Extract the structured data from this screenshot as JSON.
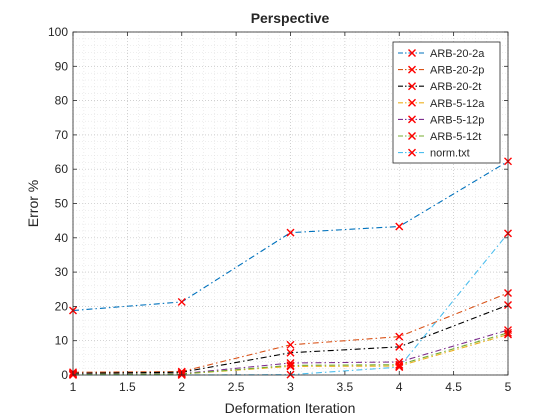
{
  "chart_data": {
    "type": "line",
    "title": "Perspective",
    "xlabel": "Deformation Iteration",
    "ylabel": "Error %",
    "xlim": [
      1,
      5
    ],
    "ylim": [
      0,
      100
    ],
    "xticks": [
      1,
      1.5,
      2,
      2.5,
      3,
      3.5,
      4,
      4.5,
      5
    ],
    "xtick_labels": [
      "1",
      "1.5",
      "2",
      "2.5",
      "3",
      "3.5",
      "4",
      "4.5",
      "5"
    ],
    "yticks": [
      0,
      10,
      20,
      30,
      40,
      50,
      60,
      70,
      80,
      90,
      100
    ],
    "ytick_labels": [
      "0",
      "10",
      "20",
      "30",
      "40",
      "50",
      "60",
      "70",
      "80",
      "90",
      "100"
    ],
    "grid": "major and minor, dotted",
    "legend_position": "top-right",
    "marker": "x",
    "marker_color": "#ff0000",
    "line_style": "dash-dot",
    "x": [
      1,
      2,
      3,
      4,
      5
    ],
    "series": [
      {
        "name": "ARB-20-2a",
        "color": "#0072BD",
        "values": [
          18.8,
          21.3,
          41.5,
          43.3,
          62.3
        ]
      },
      {
        "name": "ARB-20-2p",
        "color": "#D95319",
        "values": [
          0.8,
          1.0,
          8.8,
          11.2,
          23.9
        ]
      },
      {
        "name": "ARB-20-2t",
        "color": "#000000",
        "values": [
          0.5,
          0.8,
          6.5,
          8.2,
          20.4
        ]
      },
      {
        "name": "ARB-5-12a",
        "color": "#EDB120",
        "values": [
          0.2,
          0.3,
          2.5,
          2.6,
          11.8
        ]
      },
      {
        "name": "ARB-5-12p",
        "color": "#7E2F8E",
        "values": [
          0.3,
          0.4,
          3.5,
          3.8,
          13.1
        ]
      },
      {
        "name": "ARB-5-12t",
        "color": "#77AC30",
        "values": [
          0.2,
          0.3,
          2.8,
          3.0,
          12.3
        ]
      },
      {
        "name": "norm.txt",
        "color": "#4DBEEE",
        "values": [
          0.0,
          0.0,
          0.1,
          2.3,
          41.3
        ]
      }
    ]
  }
}
